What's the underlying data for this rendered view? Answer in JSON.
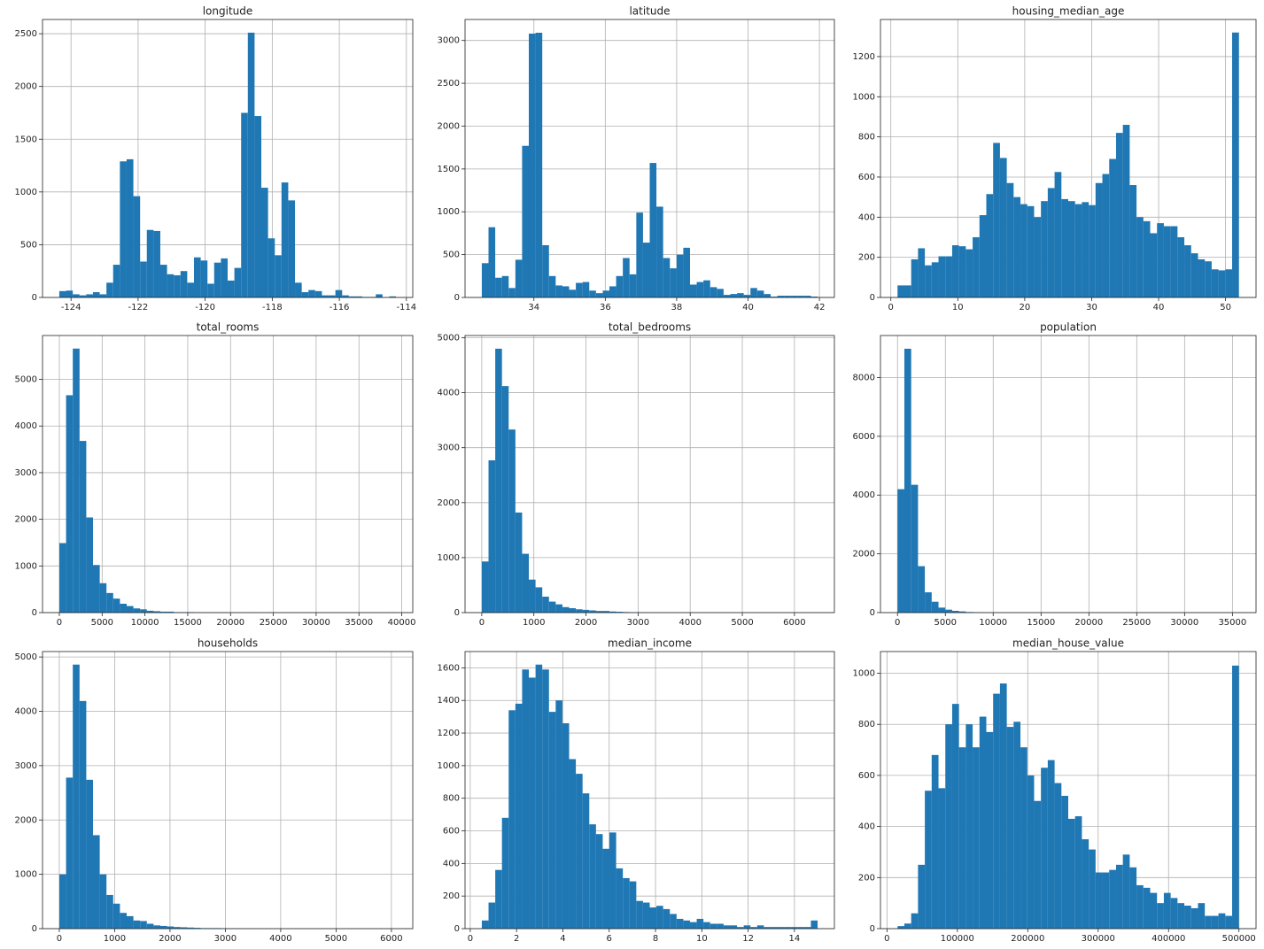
{
  "chart_data": [
    {
      "type": "histogram",
      "title": "longitude",
      "color": "#1f77b4",
      "grid": true,
      "bins": [
        -124.35,
        -124.149,
        -123.948,
        -123.748,
        -123.547,
        -123.346,
        -123.145,
        -122.944,
        -122.744,
        -122.543,
        -122.342,
        -122.141,
        -121.94,
        -121.74,
        -121.539,
        -121.338,
        -121.137,
        -120.936,
        -120.736,
        -120.535,
        -120.334,
        -120.133,
        -119.932,
        -119.732,
        -119.531,
        -119.33,
        -119.129,
        -118.928,
        -118.728,
        -118.527,
        -118.326,
        -118.125,
        -117.924,
        -117.724,
        -117.523,
        -117.322,
        -117.121,
        -116.92,
        -116.72,
        -116.519,
        -116.318,
        -116.117,
        -115.916,
        -115.716,
        -115.515,
        -115.314,
        -115.113,
        -114.912,
        -114.712,
        -114.511,
        -114.31
      ],
      "values": [
        60,
        65,
        30,
        20,
        30,
        50,
        30,
        140,
        310,
        1290,
        1310,
        960,
        340,
        640,
        630,
        310,
        220,
        210,
        250,
        140,
        380,
        350,
        130,
        330,
        370,
        160,
        280,
        1750,
        2510,
        1720,
        1040,
        560,
        400,
        1090,
        920,
        140,
        50,
        70,
        60,
        20,
        20,
        70,
        20,
        10,
        10,
        5,
        5,
        30,
        0,
        10
      ],
      "xlim": [
        -124.85,
        -113.81
      ],
      "xticks": [
        -124,
        -122,
        -120,
        -118,
        -116,
        -114
      ],
      "ylim": [
        0,
        2635
      ],
      "yticks": [
        0,
        500,
        1000,
        1500,
        2000,
        2500
      ]
    },
    {
      "type": "histogram",
      "title": "latitude",
      "color": "#1f77b4",
      "grid": true,
      "bins": [
        32.54,
        32.728,
        32.916,
        33.105,
        33.293,
        33.481,
        33.669,
        33.857,
        34.046,
        34.234,
        34.422,
        34.61,
        34.798,
        34.987,
        35.175,
        35.363,
        35.551,
        35.739,
        35.928,
        36.116,
        36.304,
        36.492,
        36.68,
        36.869,
        37.057,
        37.245,
        37.433,
        37.621,
        37.81,
        37.998,
        38.186,
        38.374,
        38.562,
        38.751,
        38.939,
        39.127,
        39.315,
        39.503,
        39.692,
        39.88,
        40.068,
        40.256,
        40.444,
        40.633,
        40.821,
        41.009,
        41.197,
        41.385,
        41.574,
        41.762,
        41.95
      ],
      "values": [
        400,
        820,
        230,
        250,
        110,
        440,
        1770,
        3080,
        3090,
        610,
        250,
        140,
        130,
        90,
        170,
        180,
        80,
        50,
        80,
        130,
        250,
        460,
        270,
        990,
        640,
        1570,
        1060,
        460,
        340,
        500,
        580,
        150,
        180,
        200,
        120,
        100,
        30,
        40,
        50,
        30,
        110,
        80,
        40,
        10,
        20,
        20,
        20,
        20,
        20,
        10
      ],
      "xlim": [
        32.07,
        42.42
      ],
      "xticks": [
        34,
        36,
        38,
        40,
        42
      ],
      "ylim": [
        0,
        3245
      ],
      "yticks": [
        0,
        500,
        1000,
        1500,
        2000,
        2500,
        3000
      ]
    },
    {
      "type": "histogram",
      "title": "housing_median_age",
      "color": "#1f77b4",
      "grid": true,
      "bins": [
        1,
        2.02,
        3.04,
        4.06,
        5.08,
        6.1,
        7.12,
        8.14,
        9.16,
        10.18,
        11.2,
        12.22,
        13.24,
        14.26,
        15.28,
        16.3,
        17.32,
        18.34,
        19.36,
        20.38,
        21.4,
        22.42,
        23.44,
        24.46,
        25.48,
        26.5,
        27.52,
        28.54,
        29.56,
        30.58,
        31.6,
        32.62,
        33.64,
        34.66,
        35.68,
        36.7,
        37.72,
        38.74,
        39.76,
        40.78,
        41.8,
        42.82,
        43.84,
        44.86,
        45.88,
        46.9,
        47.92,
        48.94,
        49.96,
        50.98,
        52
      ],
      "values": [
        60,
        60,
        190,
        245,
        160,
        175,
        205,
        205,
        260,
        255,
        240,
        300,
        410,
        515,
        770,
        695,
        570,
        500,
        465,
        455,
        400,
        480,
        545,
        625,
        490,
        480,
        465,
        475,
        460,
        570,
        615,
        690,
        820,
        860,
        560,
        400,
        380,
        320,
        370,
        355,
        355,
        300,
        260,
        220,
        190,
        180,
        140,
        135,
        140,
        1320
      ],
      "xlim": [
        -1.55,
        54.55
      ],
      "xticks": [
        0,
        10,
        20,
        30,
        40,
        50
      ],
      "ylim": [
        0,
        1385
      ],
      "yticks": [
        0,
        200,
        400,
        600,
        800,
        1000,
        1200
      ]
    },
    {
      "type": "histogram",
      "title": "total_rooms",
      "color": "#1f77b4",
      "grid": true,
      "bins": [
        2,
        788.36,
        1574.72,
        2361.08,
        3147.44,
        3933.8,
        4720.16,
        5506.52,
        6292.88,
        7079.24,
        7865.6,
        8651.96,
        9438.32,
        10224.68,
        11011.04,
        11797.4,
        12583.76,
        13370.12,
        14156.48,
        14942.84,
        15729.2,
        16515.56,
        17301.92,
        18088.28,
        18874.64,
        19661,
        20447.36,
        21233.72,
        22020.08,
        22806.44,
        23592.8,
        24379.16,
        25165.52,
        25951.88,
        26738.24,
        27524.6,
        28310.96,
        29097.32,
        29883.68,
        30670.04,
        31456.4,
        32242.76,
        33029.12,
        33815.48,
        34601.84,
        35388.2,
        36174.56,
        36960.92,
        37747.28,
        38533.64,
        39320
      ],
      "values": [
        1490,
        4660,
        5660,
        3680,
        2040,
        1020,
        630,
        420,
        300,
        190,
        140,
        90,
        70,
        40,
        30,
        20,
        20,
        10,
        10,
        10,
        5,
        5,
        5,
        5,
        5,
        0,
        0,
        0,
        5,
        0,
        0,
        5,
        0,
        0,
        0,
        0,
        0,
        0,
        0,
        0,
        0,
        0,
        0,
        0,
        0,
        0,
        0,
        0,
        0,
        5
      ],
      "xlim": [
        -1964,
        41286
      ],
      "xticks": [
        0,
        5000,
        10000,
        15000,
        20000,
        25000,
        30000,
        35000,
        40000
      ],
      "ylim": [
        0,
        5940
      ],
      "yticks": [
        0,
        1000,
        2000,
        3000,
        4000,
        5000
      ]
    },
    {
      "type": "histogram",
      "title": "total_bedrooms",
      "color": "#1f77b4",
      "grid": true,
      "bins": [
        1,
        129.88,
        258.76,
        387.64,
        516.52,
        645.4,
        774.28,
        903.16,
        1032.04,
        1160.92,
        1289.8,
        1418.68,
        1547.56,
        1676.44,
        1805.32,
        1934.2,
        2063.08,
        2191.96,
        2320.84,
        2449.72,
        2578.6,
        2707.48,
        2836.36,
        2965.24,
        3094.12,
        3223,
        3351.88,
        3480.76,
        3609.64,
        3738.52,
        3867.4,
        3996.28,
        4125.16,
        4254.04,
        4382.92,
        4511.8,
        4640.68,
        4769.56,
        4898.44,
        5027.32,
        5156.2,
        5285.08,
        5413.96,
        5542.84,
        5671.72,
        5800.6,
        5929.48,
        6058.36,
        6187.24,
        6316.12,
        6445
      ],
      "values": [
        930,
        2770,
        4800,
        4120,
        3330,
        1820,
        1070,
        600,
        460,
        290,
        200,
        150,
        100,
        80,
        60,
        50,
        40,
        30,
        30,
        20,
        15,
        10,
        5,
        5,
        5,
        3,
        3,
        2,
        2,
        1,
        1,
        1,
        1,
        0,
        0,
        0,
        0,
        0,
        0,
        1,
        0,
        0,
        0,
        0,
        0,
        0,
        0,
        0,
        0,
        1
      ],
      "xlim": [
        -321,
        6767
      ],
      "xticks": [
        0,
        1000,
        2000,
        3000,
        4000,
        5000,
        6000
      ],
      "ylim": [
        0,
        5040
      ],
      "yticks": [
        0,
        1000,
        2000,
        3000,
        4000,
        5000
      ]
    },
    {
      "type": "histogram",
      "title": "population",
      "color": "#1f77b4",
      "grid": true,
      "bins": [
        3,
        716.58,
        1430.16,
        2143.74,
        2857.32,
        3570.9,
        4284.48,
        4998.06,
        5711.64,
        6425.22,
        7138.8,
        7852.38,
        8565.96,
        9279.54,
        9993.12,
        10706.7,
        11420.28,
        12133.86,
        12847.44,
        13561.02,
        14274.6,
        14988.18,
        15701.76,
        16415.34,
        17128.92,
        17842.5,
        18556.08,
        19269.66,
        19983.24,
        20696.82,
        21410.4,
        22123.98,
        22837.56,
        23551.14,
        24264.72,
        24978.3,
        25691.88,
        26405.46,
        27119.04,
        27832.62,
        28546.2,
        29259.78,
        29973.36,
        30686.94,
        31400.52,
        32114.1,
        32827.68,
        33541.26,
        34254.84,
        34968.42,
        35682
      ],
      "values": [
        4200,
        8980,
        4350,
        1580,
        690,
        370,
        170,
        100,
        60,
        40,
        20,
        15,
        10,
        5,
        3,
        2,
        1,
        1,
        1,
        0,
        0,
        0,
        0,
        0,
        0,
        0,
        1,
        0,
        0,
        0,
        0,
        0,
        0,
        0,
        0,
        0,
        0,
        0,
        0,
        0,
        0,
        0,
        0,
        0,
        0,
        0,
        0,
        0,
        0,
        1
      ],
      "xlim": [
        -1781,
        37466
      ],
      "xticks": [
        0,
        5000,
        10000,
        15000,
        20000,
        25000,
        30000,
        35000
      ],
      "ylim": [
        0,
        9430
      ],
      "yticks": [
        0,
        2000,
        4000,
        6000,
        8000
      ]
    },
    {
      "type": "histogram",
      "title": "households",
      "color": "#1f77b4",
      "grid": true,
      "bins": [
        1,
        122.62,
        244.24,
        365.86,
        487.48,
        609.1,
        730.72,
        852.34,
        973.96,
        1095.58,
        1217.2,
        1338.82,
        1460.44,
        1582.06,
        1703.68,
        1825.3,
        1946.92,
        2068.54,
        2190.16,
        2311.78,
        2433.4,
        2555.02,
        2676.64,
        2798.26,
        2919.88,
        3041.5,
        3163.12,
        3284.74,
        3406.36,
        3527.98,
        3649.6,
        3771.22,
        3892.84,
        4014.46,
        4136.08,
        4257.7,
        4379.32,
        4500.94,
        4622.56,
        4744.18,
        4865.8,
        4987.42,
        5109.04,
        5230.66,
        5352.28,
        5473.9,
        5595.52,
        5717.14,
        5838.76,
        5960.38,
        6082
      ],
      "values": [
        1000,
        2780,
        4860,
        4190,
        2740,
        1720,
        1000,
        620,
        460,
        290,
        230,
        150,
        140,
        90,
        60,
        50,
        40,
        30,
        25,
        20,
        15,
        10,
        10,
        10,
        5,
        5,
        5,
        3,
        2,
        1,
        1,
        1,
        1,
        0,
        0,
        0,
        0,
        0,
        0,
        0,
        0,
        0,
        0,
        0,
        0,
        0,
        0,
        0,
        0,
        1
      ],
      "xlim": [
        -303,
        6386
      ],
      "xticks": [
        0,
        1000,
        2000,
        3000,
        4000,
        5000,
        6000
      ],
      "ylim": [
        0,
        5100
      ],
      "yticks": [
        0,
        1000,
        2000,
        3000,
        4000,
        5000
      ]
    },
    {
      "type": "histogram",
      "title": "median_income",
      "color": "#1f77b4",
      "grid": true,
      "bins": [
        0.5,
        0.79,
        1.08,
        1.37,
        1.66,
        1.95,
        2.24,
        2.53,
        2.82,
        3.11,
        3.4,
        3.69,
        3.98,
        4.27,
        4.56,
        4.85,
        5.14,
        5.43,
        5.72,
        6.01,
        6.3,
        6.59,
        6.88,
        7.17,
        7.46,
        7.75,
        8.04,
        8.33,
        8.62,
        8.91,
        9.2,
        9.49,
        9.78,
        10.07,
        10.36,
        10.65,
        10.94,
        11.23,
        11.52,
        11.81,
        12.1,
        12.39,
        12.68,
        12.97,
        13.26,
        13.55,
        13.84,
        14.13,
        14.42,
        14.71,
        15.0
      ],
      "values": [
        50,
        160,
        360,
        680,
        1340,
        1380,
        1590,
        1540,
        1620,
        1590,
        1330,
        1400,
        1260,
        1040,
        950,
        830,
        640,
        580,
        490,
        590,
        370,
        310,
        290,
        170,
        160,
        130,
        140,
        120,
        90,
        60,
        50,
        40,
        60,
        40,
        30,
        30,
        20,
        20,
        10,
        20,
        10,
        20,
        10,
        10,
        10,
        10,
        10,
        10,
        10,
        50
      ],
      "xlim": [
        -0.225,
        15.725
      ],
      "xticks": [
        0,
        2,
        4,
        6,
        8,
        10,
        12,
        14
      ],
      "ylim": [
        0,
        1700
      ],
      "yticks": [
        0,
        200,
        400,
        600,
        800,
        1000,
        1200,
        1400,
        1600
      ]
    },
    {
      "type": "histogram",
      "title": "median_house_value",
      "color": "#1f77b4",
      "grid": true,
      "bins": [
        14999,
        24699.04,
        34399.08,
        44099.12,
        53799.16,
        63499.2,
        73199.24,
        82899.28,
        92599.32,
        102299.36,
        111999.4,
        121699.44,
        131399.48,
        141099.52,
        150799.56,
        160499.6,
        170199.64,
        179899.68,
        189599.72,
        199299.76,
        208999.8,
        218699.84,
        228399.88,
        238099.92,
        247799.96,
        257500,
        267200.04,
        276900.08,
        286600.12,
        296300.16,
        306000.2,
        315700.24,
        325400.28,
        335100.32,
        344800.36,
        354500.4,
        364200.44,
        373900.48,
        383600.52,
        393300.56,
        403000.6,
        412700.64,
        422400.68,
        432100.72,
        441800.76,
        451500.8,
        461200.84,
        470900.88,
        480600.92,
        490300.96,
        500001
      ],
      "values": [
        10,
        20,
        60,
        250,
        540,
        680,
        550,
        800,
        880,
        710,
        800,
        710,
        830,
        770,
        920,
        960,
        790,
        810,
        710,
        600,
        500,
        630,
        660,
        570,
        520,
        430,
        440,
        350,
        310,
        220,
        220,
        230,
        250,
        290,
        240,
        170,
        160,
        140,
        100,
        140,
        120,
        100,
        90,
        80,
        100,
        50,
        50,
        60,
        50,
        1030
      ],
      "xlim": [
        -9251,
        524251
      ],
      "xticks": [
        0,
        100000,
        200000,
        300000,
        400000,
        500000
      ],
      "ylim": [
        0,
        1085
      ],
      "yticks": [
        0,
        200,
        400,
        600,
        800,
        1000
      ]
    }
  ]
}
